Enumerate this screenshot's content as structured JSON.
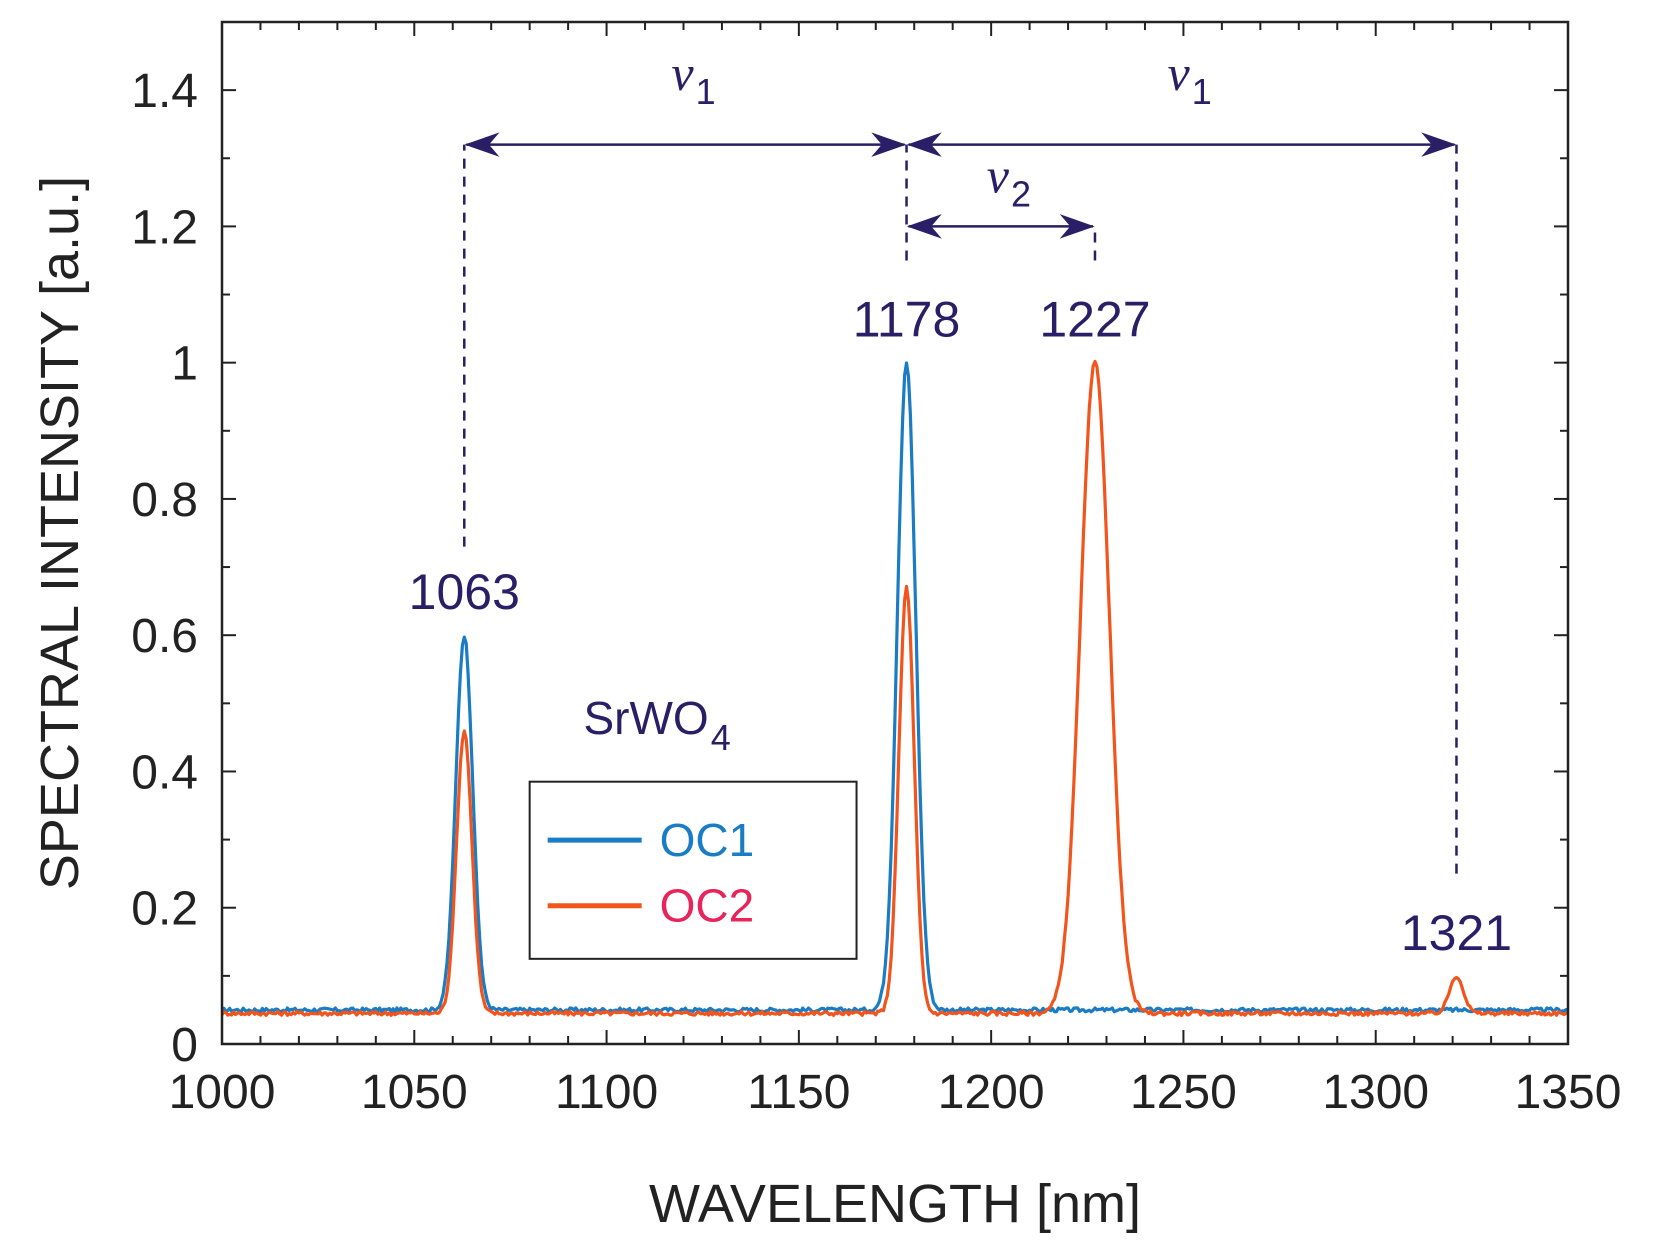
{
  "chart_data": {
    "type": "line",
    "xlabel": "WAVELENGTH [nm]",
    "ylabel": "SPECTRAL INTENSITY [a.u.]",
    "xlim": [
      1000,
      1350
    ],
    "ylim": [
      0,
      1.5
    ],
    "xticks": [
      1000,
      1050,
      1100,
      1150,
      1200,
      1250,
      1300,
      1350
    ],
    "xtick_labels": [
      "1000",
      "1050",
      "1100",
      "1150",
      "1200",
      "1250",
      "1300",
      "1350"
    ],
    "yticks": [
      0,
      0.2,
      0.4,
      0.6,
      0.8,
      1,
      1.2,
      1.4
    ],
    "ytick_labels": [
      "0",
      "0.2",
      "0.4",
      "0.6",
      "0.8",
      "1",
      "1.2",
      "1.4"
    ],
    "series": [
      {
        "name": "OC1",
        "color": "#1a7cc4",
        "baseline": 0.05,
        "peaks": [
          {
            "center": 1063,
            "height": 0.6,
            "width": 2.2
          },
          {
            "center": 1178,
            "height": 1.0,
            "width": 2.4
          }
        ]
      },
      {
        "name": "OC2",
        "color": "#f2541b",
        "baseline": 0.045,
        "peaks": [
          {
            "center": 1063,
            "height": 0.46,
            "width": 2.0
          },
          {
            "center": 1178,
            "height": 0.67,
            "width": 2.0
          },
          {
            "center": 1227,
            "height": 1.0,
            "width": 3.8
          },
          {
            "center": 1321,
            "height": 0.1,
            "width": 1.8
          }
        ]
      }
    ],
    "peak_labels": [
      {
        "text": "1063",
        "x": 1063,
        "y": 0.6
      },
      {
        "text": "1178",
        "x": 1178,
        "y": 1.0
      },
      {
        "text": "1227",
        "x": 1227,
        "y": 1.0
      },
      {
        "text": "1321",
        "x": 1321,
        "y": 0.1
      }
    ],
    "dashed_lines": [
      {
        "x": 1063,
        "y_from": 0.73,
        "y_to": 1.32
      },
      {
        "x": 1178,
        "y_from": 1.15,
        "y_to": 1.32
      },
      {
        "x": 1227,
        "y_from": 1.15,
        "y_to": 1.2
      },
      {
        "x": 1321,
        "y_from": 0.25,
        "y_to": 1.32
      }
    ],
    "shift_arrows": [
      {
        "symbol": "ν",
        "subscript": "1",
        "x_from": 1063,
        "x_to": 1178,
        "y": 1.32,
        "label_y": 1.4
      },
      {
        "symbol": "ν",
        "subscript": "1",
        "x_from": 1178,
        "x_to": 1321,
        "y": 1.32,
        "label_y": 1.4
      },
      {
        "symbol": "ν",
        "subscript": "2",
        "x_from": 1178,
        "x_to": 1227,
        "y": 1.2,
        "label_y": 1.25
      }
    ],
    "annotation_color": "#2a1f66",
    "compound": {
      "base": "SrWO",
      "subscript": "4"
    },
    "legend": {
      "position": "lower-left",
      "entries": [
        "OC1",
        "OC2"
      ]
    },
    "legend_text_colors": [
      "#1a7cc4",
      "#e8245a"
    ]
  }
}
